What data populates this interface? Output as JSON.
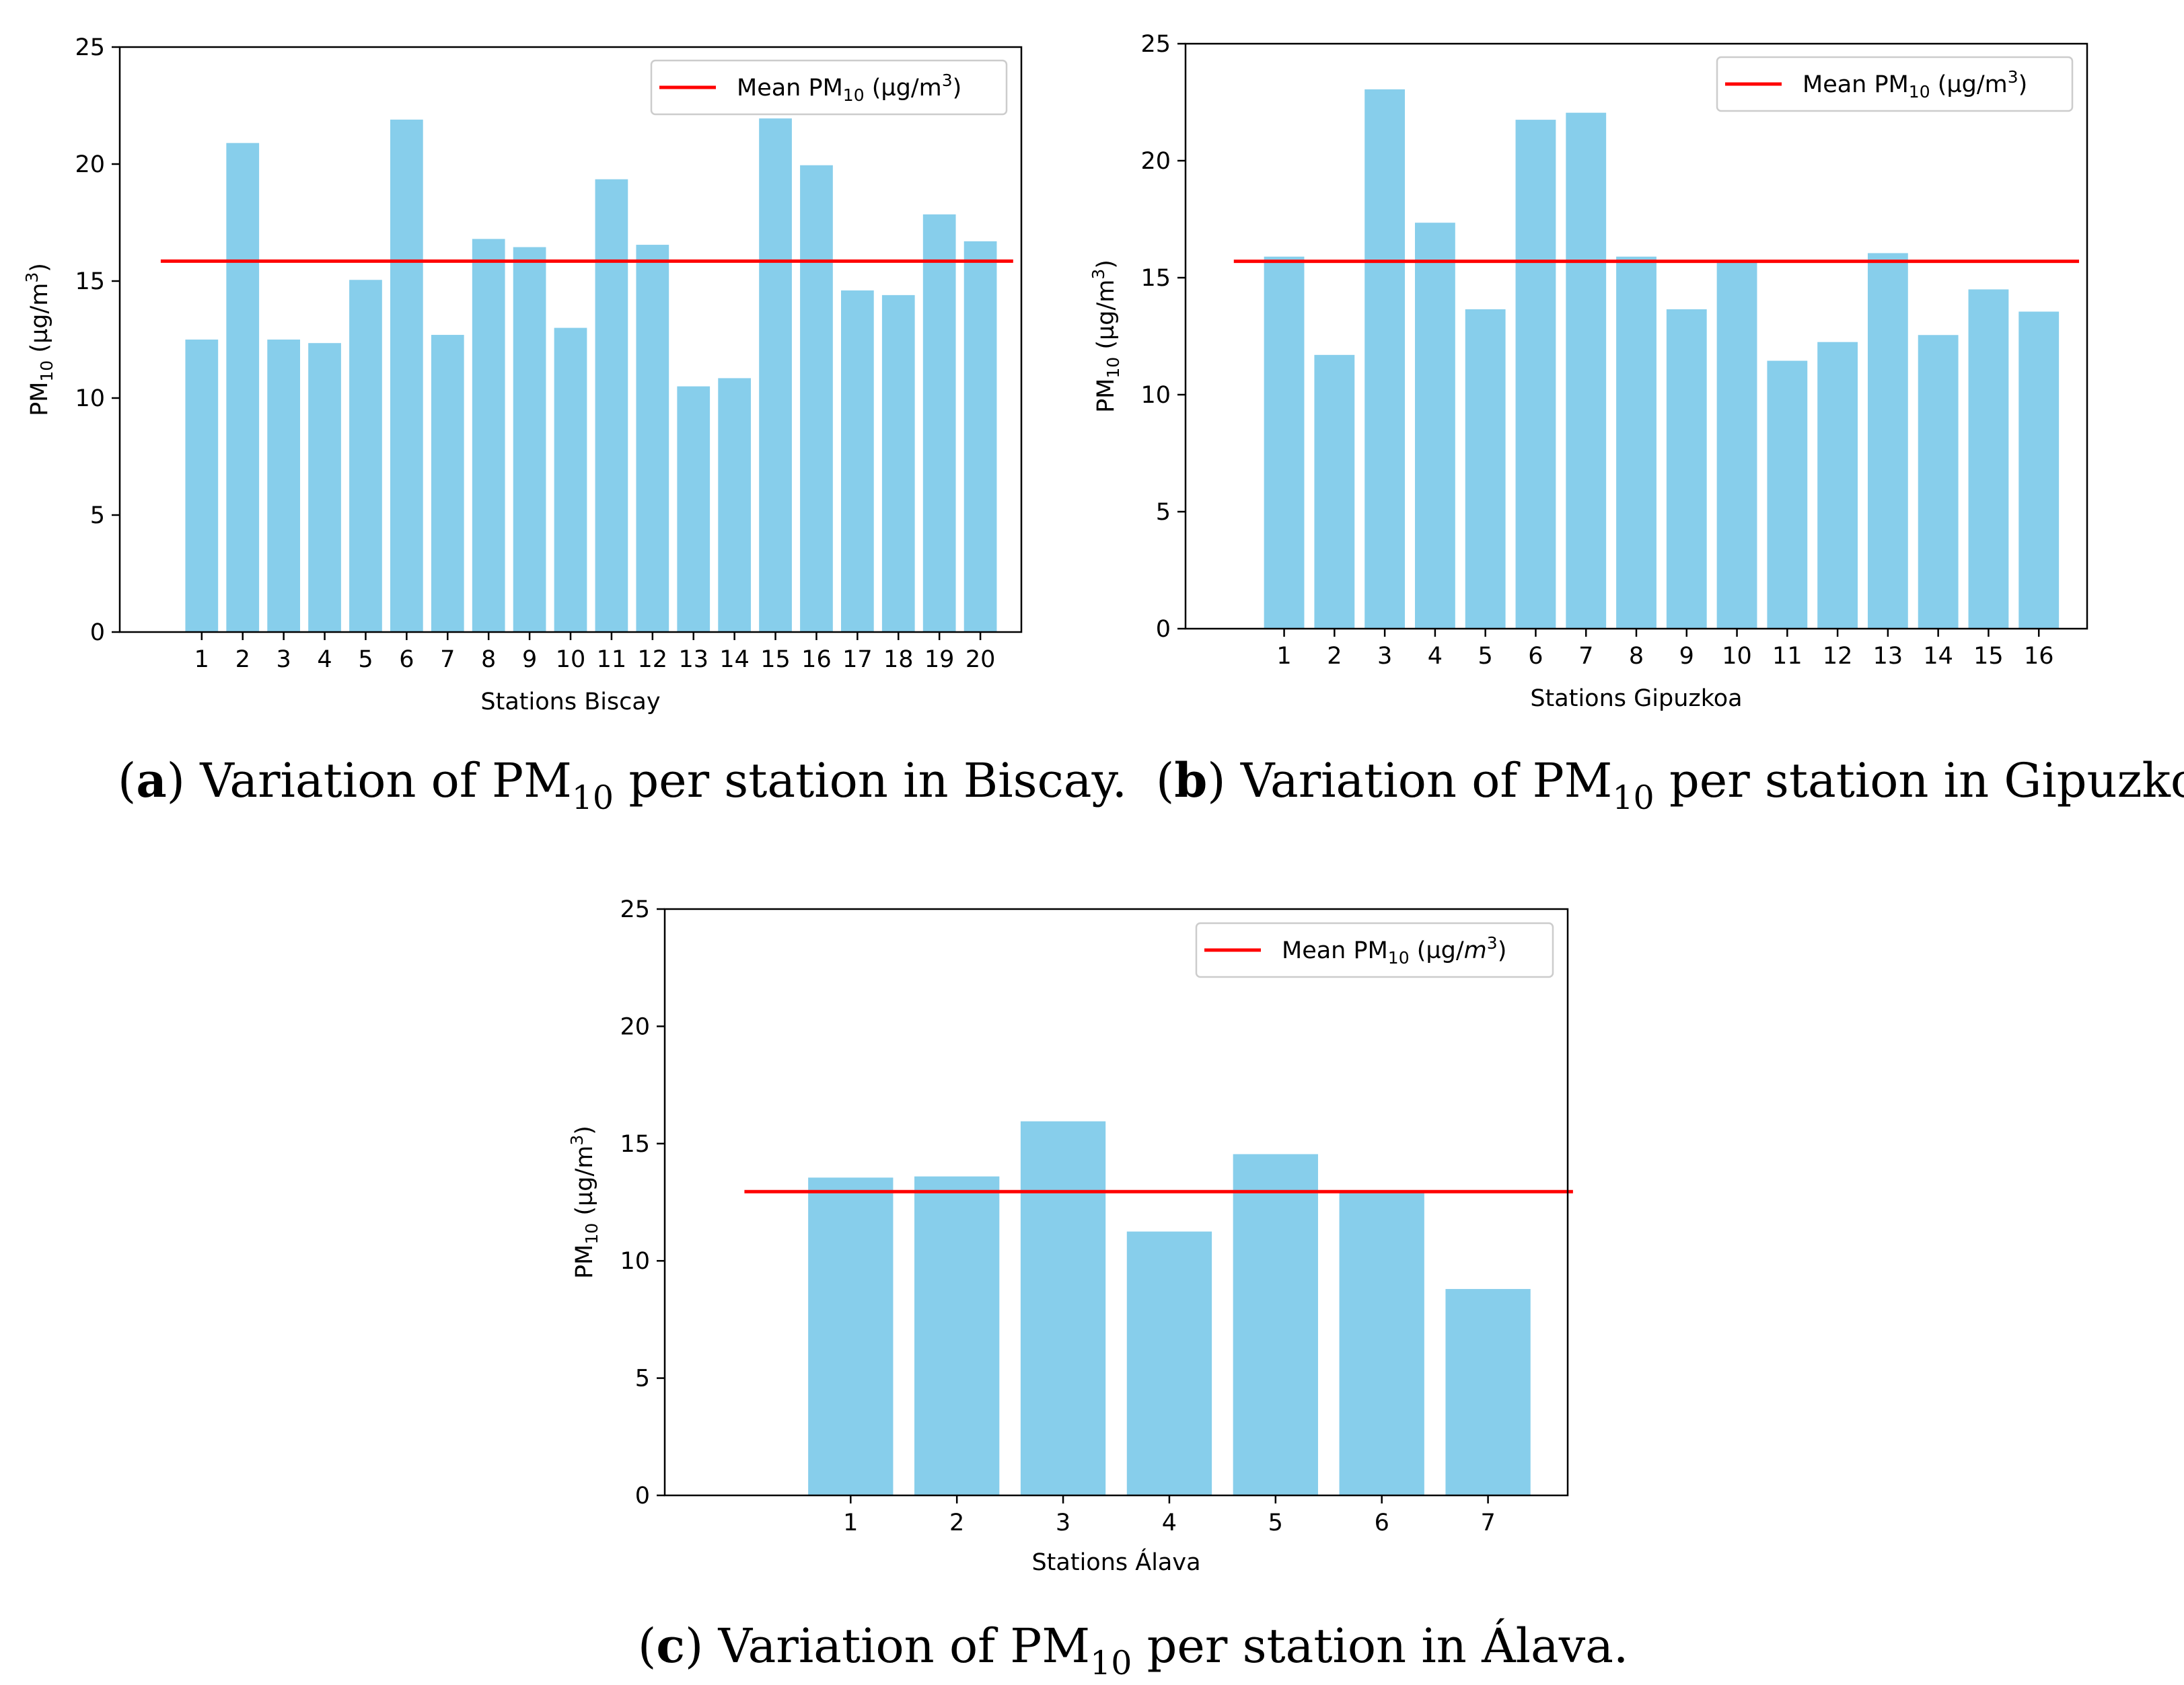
{
  "colors": {
    "bar": "#87ceeb",
    "mean_line": "#ff0000"
  },
  "chart_data": [
    {
      "id": "biscay",
      "type": "bar",
      "categories": [
        "1",
        "2",
        "3",
        "4",
        "5",
        "6",
        "7",
        "8",
        "9",
        "10",
        "11",
        "12",
        "13",
        "14",
        "15",
        "16",
        "17",
        "18",
        "19",
        "20"
      ],
      "values": [
        12.5,
        20.9,
        12.5,
        12.35,
        15.05,
        21.9,
        12.7,
        16.8,
        16.45,
        13.0,
        19.35,
        16.55,
        10.5,
        10.85,
        21.95,
        19.95,
        14.6,
        14.4,
        17.85,
        16.7
      ],
      "mean": 15.85,
      "ylim": [
        0,
        25
      ],
      "yticks": [
        0,
        5,
        10,
        15,
        20,
        25
      ],
      "xlabel": "Stations Biscay",
      "ylabel": {
        "base": "PM",
        "sub": "10",
        "rest": " (µg/m",
        "sup": "3",
        "close": ")"
      },
      "legend": {
        "prefix": "Mean PM",
        "sub": "10",
        "unit": " (µg/m",
        "sup": "3",
        "close": ")",
        "position": "top-right"
      },
      "caption": {
        "open": "(",
        "letter": "a",
        "close": ")",
        "text1": " Variation of PM",
        "sub": "10",
        "text2": " per station in Biscay."
      }
    },
    {
      "id": "gipuzkoa",
      "type": "bar",
      "categories": [
        "1",
        "2",
        "3",
        "4",
        "5",
        "6",
        "7",
        "8",
        "9",
        "10",
        "11",
        "12",
        "13",
        "14",
        "15",
        "16"
      ],
      "values": [
        15.9,
        11.7,
        23.05,
        17.35,
        13.65,
        21.75,
        22.05,
        15.9,
        13.65,
        15.75,
        11.45,
        12.25,
        16.05,
        12.55,
        14.5,
        13.55
      ],
      "mean": 15.7,
      "ylim": [
        0,
        25
      ],
      "yticks": [
        0,
        5,
        10,
        15,
        20,
        25
      ],
      "xlabel": "Stations Gipuzkoa",
      "ylabel": {
        "base": "PM",
        "sub": "10",
        "rest": " (µg/m",
        "sup": "3",
        "close": ")"
      },
      "legend": {
        "prefix": "Mean PM",
        "sub": "10",
        "unit": " (µg/m",
        "sup": "3",
        "close": ")",
        "position": "top-right"
      },
      "caption": {
        "open": "(",
        "letter": "b",
        "close": ")",
        "text1": " Variation of PM",
        "sub": "10",
        "text2": " per station in Gipuzkoa."
      }
    },
    {
      "id": "alava",
      "type": "bar",
      "categories": [
        "1",
        "2",
        "3",
        "4",
        "5",
        "6",
        "7"
      ],
      "values": [
        13.55,
        13.6,
        15.95,
        11.25,
        14.55,
        13.0,
        8.8
      ],
      "mean": 12.95,
      "ylim": [
        0,
        25
      ],
      "yticks": [
        0,
        5,
        10,
        15,
        20,
        25
      ],
      "xlabel": "Stations Álava",
      "ylabel": {
        "base": "PM",
        "sub": "10",
        "rest": " (µg/m",
        "sup": "3",
        "close": ")"
      },
      "legend": {
        "prefix": "Mean PM",
        "sub": "10",
        "unit": " (µg/",
        "unit_m": "m",
        "sup": "3",
        "close": ")",
        "position": "top-right"
      },
      "caption": {
        "open": "(",
        "letter": "c",
        "close": ")",
        "text1": " Variation of PM",
        "sub": "10",
        "text2": " per station in Álava."
      }
    }
  ]
}
